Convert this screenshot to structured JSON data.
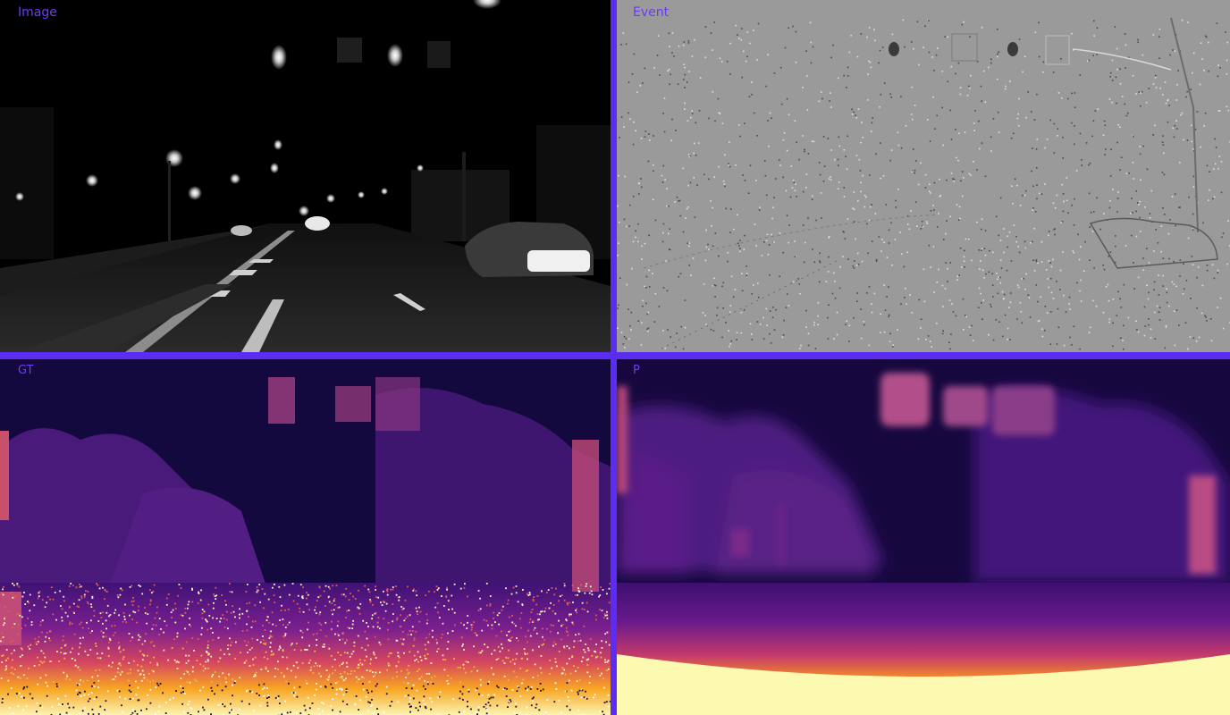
{
  "panels": {
    "image": {
      "label": "Image"
    },
    "event": {
      "label": "Event"
    },
    "gt": {
      "label": "GT"
    },
    "pred": {
      "label": "P"
    }
  }
}
